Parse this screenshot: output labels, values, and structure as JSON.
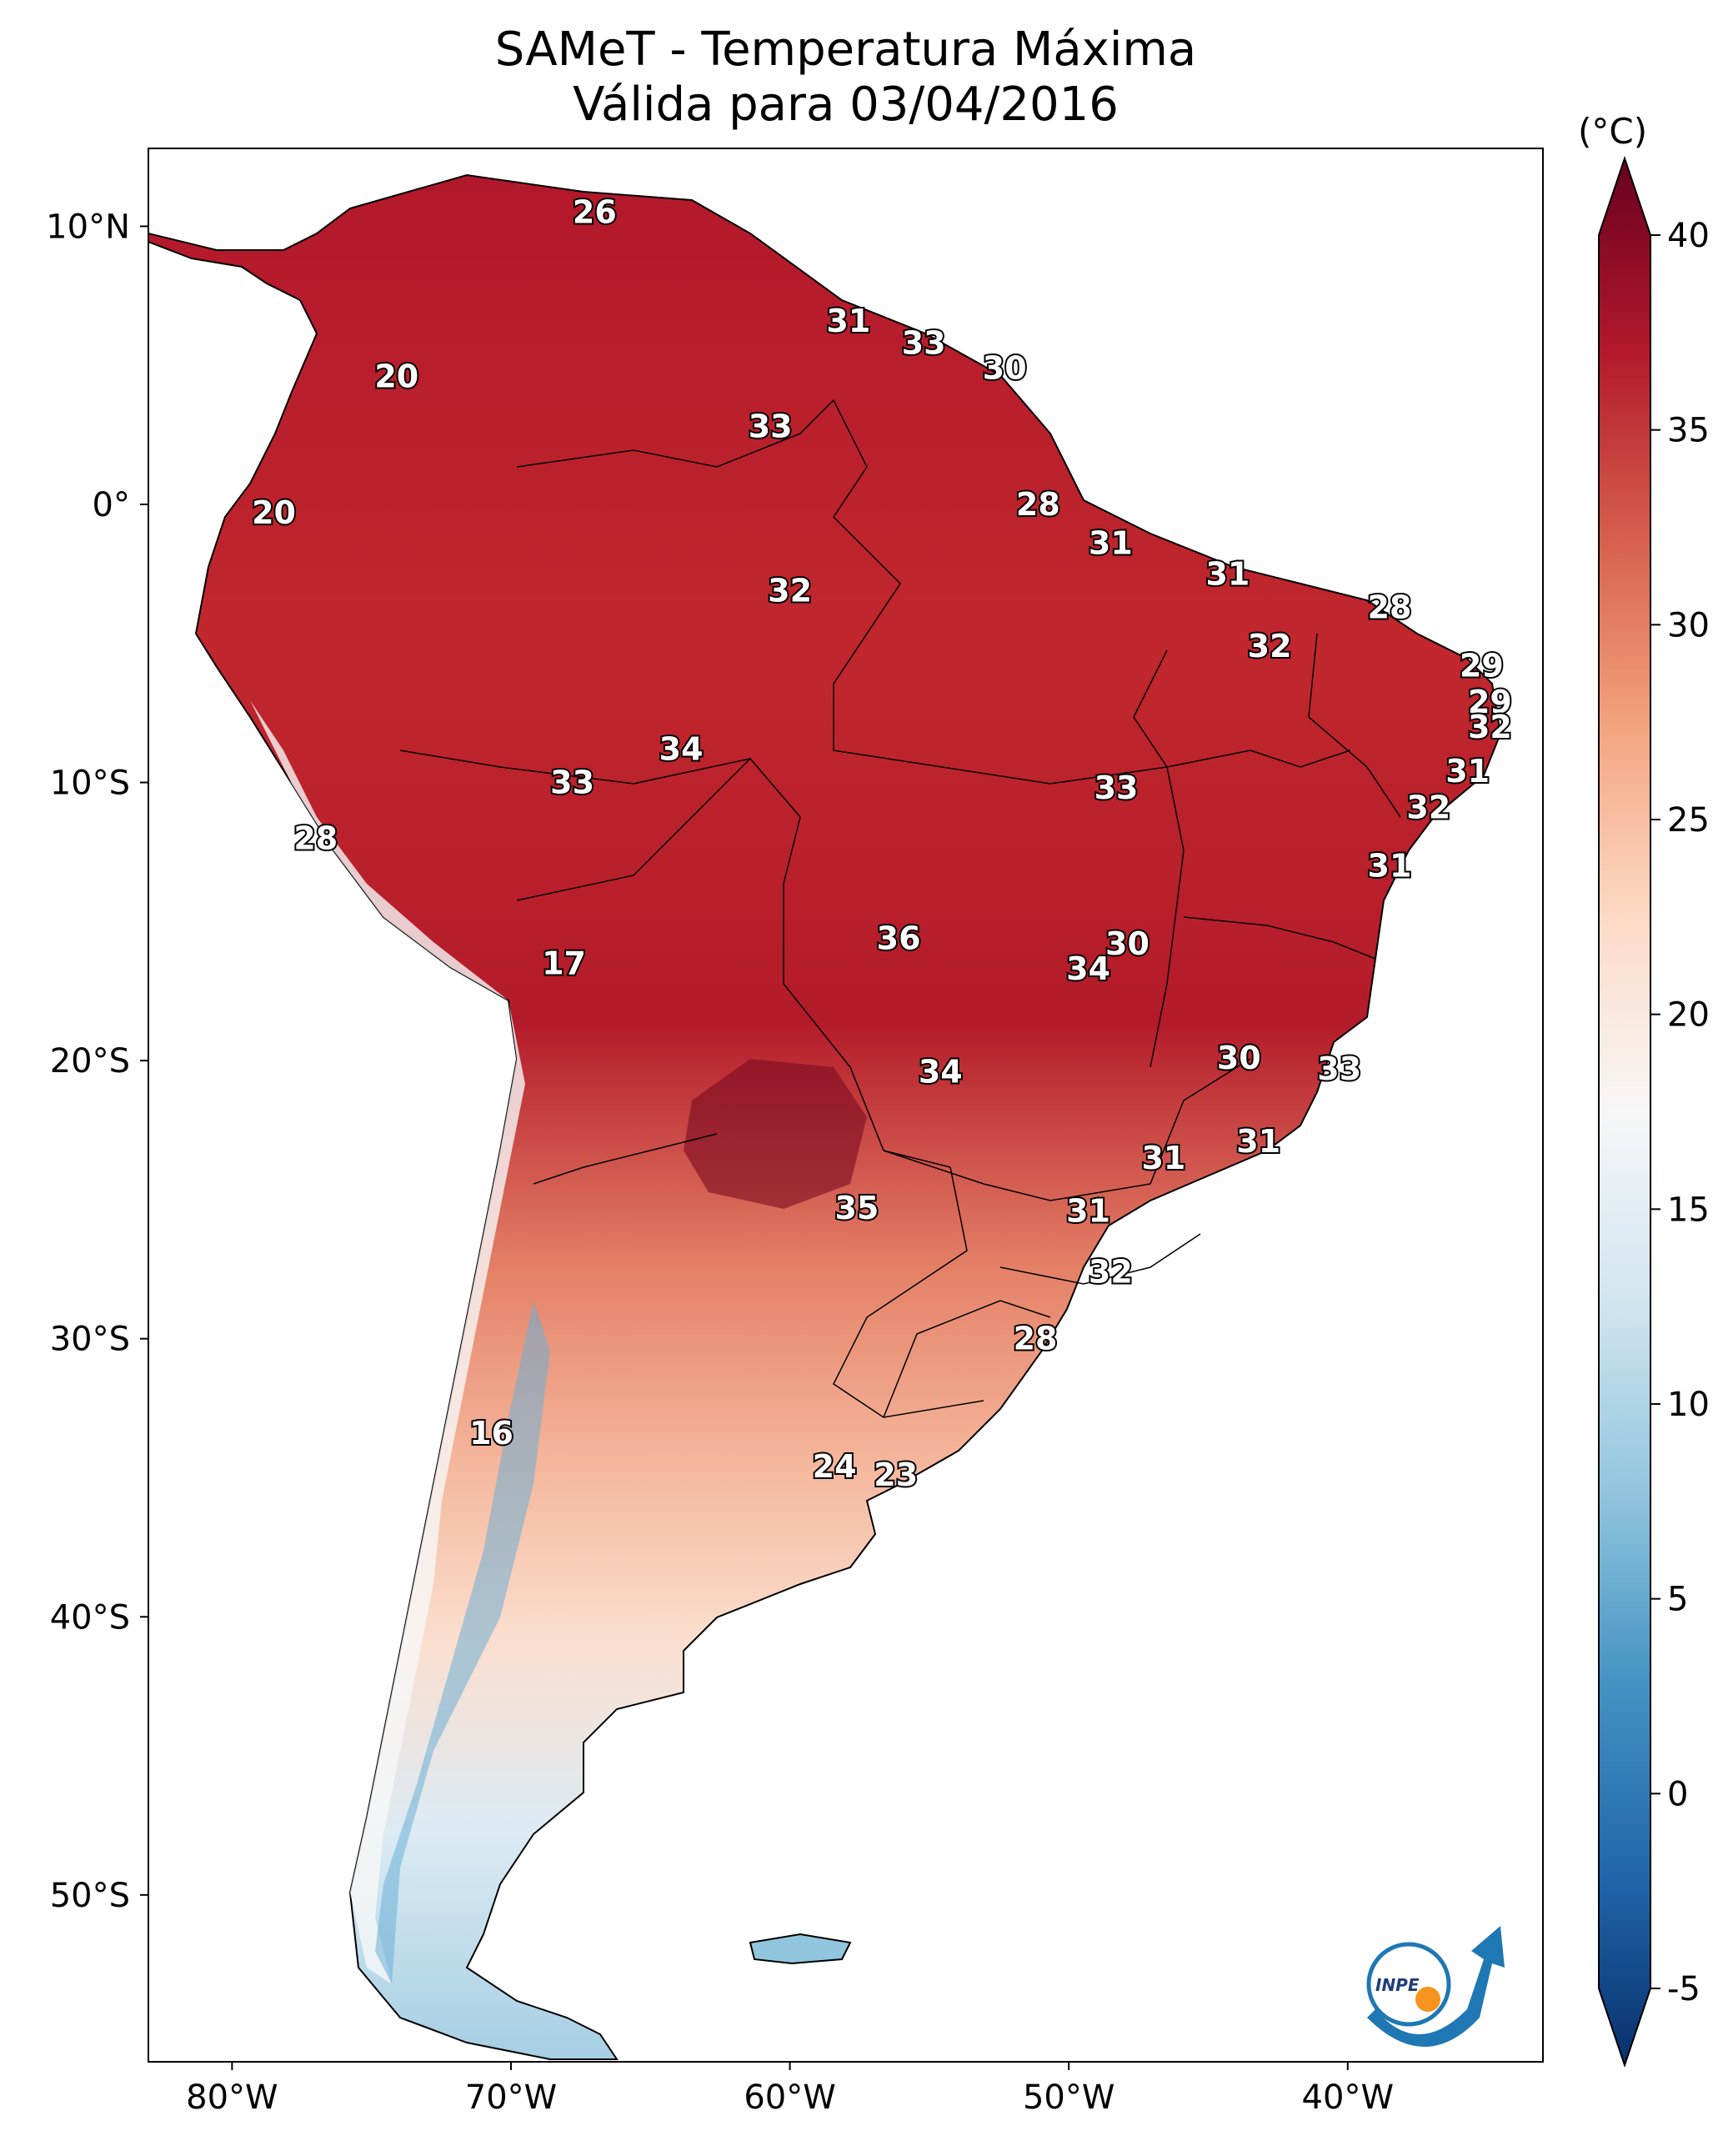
{
  "title": "SAMeT - Temperatura Máxima",
  "subtitle": "Válida para 03/04/2016",
  "colorbar": {
    "unit": "(°C)",
    "range": [
      -5,
      40
    ],
    "ticks": [
      "40",
      "35",
      "30",
      "25",
      "20",
      "15",
      "10",
      "5",
      "0",
      "-5"
    ],
    "colors": [
      "#08306b",
      "#2166ac",
      "#4393c3",
      "#92c5de",
      "#d1e5f0",
      "#f7f7f7",
      "#fddbc7",
      "#f4a582",
      "#d6604d",
      "#b2182b",
      "#67001f"
    ]
  },
  "axes": {
    "lon_ticks": [
      "80°W",
      "70°W",
      "60°W",
      "50°W",
      "40°W"
    ],
    "lat_ticks": [
      "10°N",
      "0°",
      "10°S",
      "20°S",
      "30°S",
      "40°S",
      "50°S"
    ]
  },
  "logo": {
    "text": "INPE",
    "icon": "inpe-logo"
  },
  "city_labels": [
    {
      "v": "26",
      "lon": -67.0,
      "lat": 10.5
    },
    {
      "v": "31",
      "lon": -57.9,
      "lat": 6.6
    },
    {
      "v": "33",
      "lon": -55.2,
      "lat": 5.8
    },
    {
      "v": "30",
      "lon": -52.3,
      "lat": 4.9
    },
    {
      "v": "20",
      "lon": -74.1,
      "lat": 4.6
    },
    {
      "v": "33",
      "lon": -60.7,
      "lat": 2.8
    },
    {
      "v": "28",
      "lon": -51.1,
      "lat": 0.0
    },
    {
      "v": "20",
      "lon": -78.5,
      "lat": -0.3
    },
    {
      "v": "31",
      "lon": -48.5,
      "lat": -1.4
    },
    {
      "v": "31",
      "lon": -44.3,
      "lat": -2.5
    },
    {
      "v": "32",
      "lon": -60.0,
      "lat": -3.1
    },
    {
      "v": "28",
      "lon": -38.5,
      "lat": -3.7
    },
    {
      "v": "32",
      "lon": -42.8,
      "lat": -5.1
    },
    {
      "v": "29",
      "lon": -35.2,
      "lat": -5.8
    },
    {
      "v": "29",
      "lon": -34.9,
      "lat": -7.1
    },
    {
      "v": "32",
      "lon": -34.9,
      "lat": -8.0
    },
    {
      "v": "34",
      "lon": -63.9,
      "lat": -8.8
    },
    {
      "v": "33",
      "lon": -48.3,
      "lat": -10.2
    },
    {
      "v": "31",
      "lon": -35.7,
      "lat": -9.6
    },
    {
      "v": "33",
      "lon": -67.8,
      "lat": -10.0
    },
    {
      "v": "32",
      "lon": -37.1,
      "lat": -10.9
    },
    {
      "v": "28",
      "lon": -77.0,
      "lat": -12.0
    },
    {
      "v": "31",
      "lon": -38.5,
      "lat": -13.0
    },
    {
      "v": "36",
      "lon": -56.1,
      "lat": -15.6
    },
    {
      "v": "30",
      "lon": -47.9,
      "lat": -15.8
    },
    {
      "v": "34",
      "lon": -49.3,
      "lat": -16.7
    },
    {
      "v": "17",
      "lon": -68.1,
      "lat": -16.5
    },
    {
      "v": "30",
      "lon": -43.9,
      "lat": -19.9
    },
    {
      "v": "33",
      "lon": -40.3,
      "lat": -20.3
    },
    {
      "v": "34",
      "lon": -54.6,
      "lat": -20.4
    },
    {
      "v": "31",
      "lon": -43.2,
      "lat": -22.9
    },
    {
      "v": "31",
      "lon": -46.6,
      "lat": -23.5
    },
    {
      "v": "35",
      "lon": -57.6,
      "lat": -25.3
    },
    {
      "v": "31",
      "lon": -49.3,
      "lat": -25.4
    },
    {
      "v": "32",
      "lon": -48.5,
      "lat": -27.6
    },
    {
      "v": "28",
      "lon": -51.2,
      "lat": -30.0
    },
    {
      "v": "16",
      "lon": -70.7,
      "lat": -33.4
    },
    {
      "v": "24",
      "lon": -58.4,
      "lat": -34.6
    },
    {
      "v": "23",
      "lon": -56.2,
      "lat": -34.9
    }
  ]
}
